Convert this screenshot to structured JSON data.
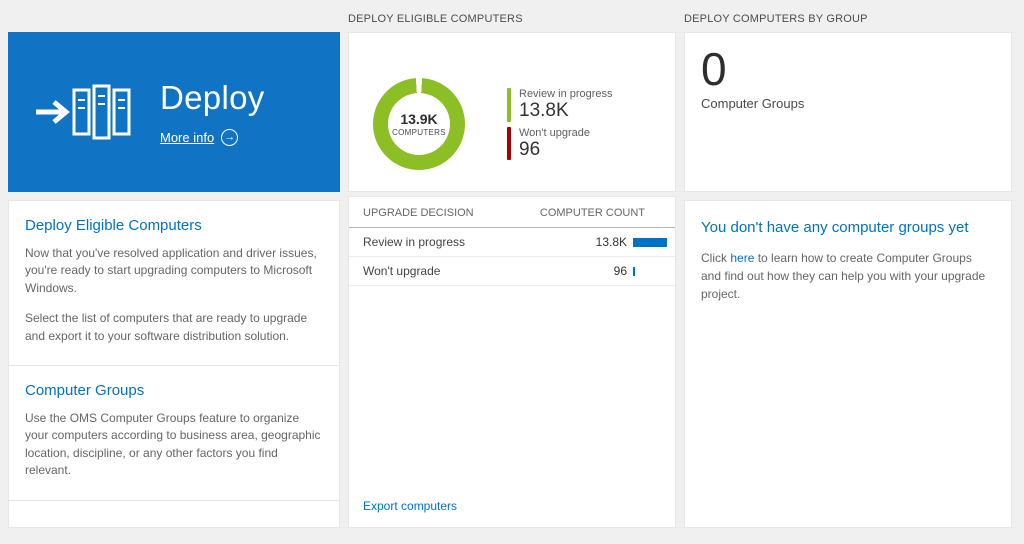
{
  "colors": {
    "page_bg": "#f0f0f0",
    "tile_blue": "#1173c4",
    "link_blue": "#0072c6",
    "donut_green": "#8cbf26",
    "alert_red": "#a80000",
    "count_bar": "#0072c6"
  },
  "column_headers": {
    "middle": "DEPLOY ELIGIBLE COMPUTERS",
    "right": "DEPLOY COMPUTERS BY GROUP"
  },
  "tile": {
    "title": "Deploy",
    "more_info_label": "More info"
  },
  "left_panel": {
    "sections": [
      {
        "heading": "Deploy Eligible Computers",
        "paragraphs": [
          "Now that you've resolved application and driver issues, you're ready to start upgrading computers to Microsoft Windows.",
          "Select the list of computers that are ready to upgrade and export it to your software distribution solution."
        ]
      },
      {
        "heading": "Computer Groups",
        "paragraphs": [
          "Use the OMS Computer Groups feature to organize your computers according to business area, geographic location, discipline, or any other factors you find relevant."
        ]
      }
    ]
  },
  "chart_data": {
    "type": "pie",
    "title": "DEPLOY ELIGIBLE COMPUTERS",
    "center_value": "13.9K",
    "center_label": "COMPUTERS",
    "legend_position": "right",
    "slices": [
      {
        "label": "Review in progress",
        "value": 13800,
        "display": "13.8K",
        "color": "#8cbf26"
      },
      {
        "label": "Won't upgrade",
        "value": 96,
        "display": "96",
        "color": "#a80000"
      }
    ]
  },
  "table": {
    "headers": [
      "UPGRADE DECISION",
      "COMPUTER COUNT"
    ],
    "rows": [
      {
        "label": "Review in progress",
        "display": "13.8K",
        "value": 13800
      },
      {
        "label": "Won't upgrade",
        "display": "96",
        "value": 96
      }
    ],
    "export_label": "Export computers"
  },
  "groups_panel": {
    "count": "0",
    "count_label": "Computer Groups",
    "empty_heading": "You don't have any computer groups yet",
    "empty_text_before": "Click ",
    "empty_link": "here",
    "empty_text_after": " to learn how to create Computer Groups and find out how they can help you with your upgrade project."
  }
}
